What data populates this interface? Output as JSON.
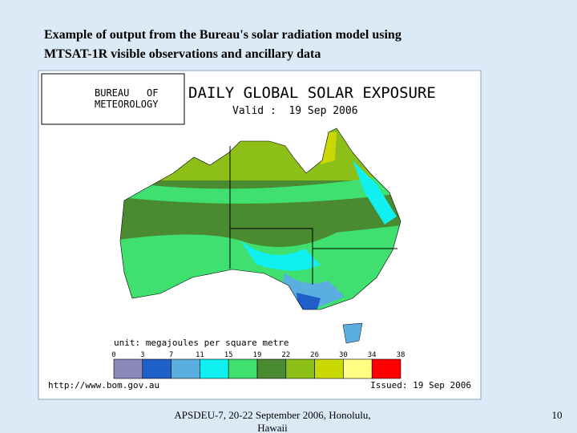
{
  "slide": {
    "title_lines": [
      "Example of output from the Bureau's solar radiation model using",
      "MTSAT-1R visible observations and ancillary data"
    ],
    "footer_lines": [
      "APSDEU-7, 20-22 September 2006, Honolulu,",
      "Hawaii"
    ],
    "page_number": "10"
  },
  "map": {
    "agency_lines": [
      "BUREAU   OF",
      "METEOROLOGY"
    ],
    "title": "DAILY GLOBAL SOLAR EXPOSURE",
    "valid": "Valid :  19 Sep 2006",
    "unit": "unit: megajoules per square metre",
    "url": "http://www.bom.gov.au",
    "issued": "Issued: 19 Sep 2006",
    "legend": {
      "ticks": [
        "0",
        "3",
        "7",
        "11",
        "15",
        "19",
        "22",
        "26",
        "30",
        "34",
        "38"
      ],
      "colors": [
        "#8a88b8",
        "#1f5fc8",
        "#5aaee0",
        "#10f0f0",
        "#40e070",
        "#4a8a30",
        "#8cc018",
        "#c8d800",
        "#ffff80",
        "#ff0000"
      ]
    }
  }
}
